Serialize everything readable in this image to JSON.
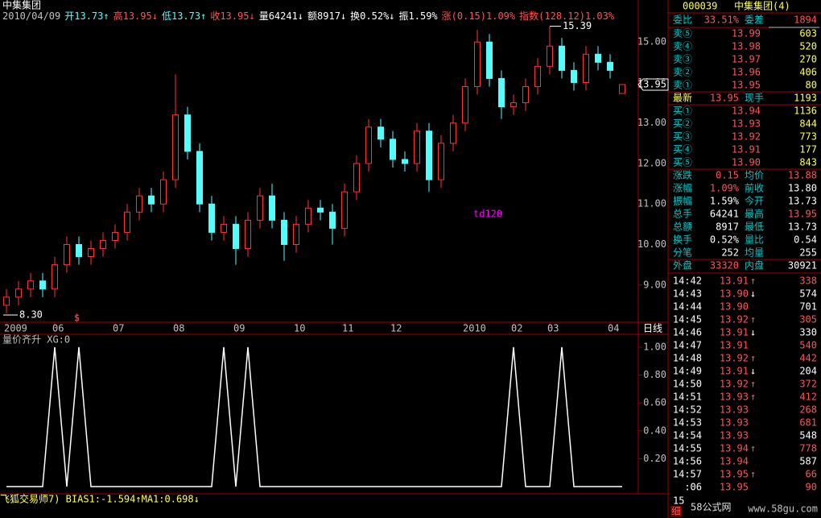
{
  "header": {
    "title": "中集集团",
    "info": [
      {
        "text": "2010/04/09",
        "color": "#c0c0c0"
      },
      {
        "text": "开13.73↑",
        "color": "#54fcfc"
      },
      {
        "text": "高13.95↓",
        "color": "#ff5454"
      },
      {
        "text": "低13.73↑",
        "color": "#54fcfc"
      },
      {
        "text": "收13.95↓",
        "color": "#ff5454"
      },
      {
        "text": "量64241↓",
        "color": "#ffffff"
      },
      {
        "text": "额8917↓",
        "color": "#ffffff"
      },
      {
        "text": "换0.52%↓",
        "color": "#ffffff"
      },
      {
        "text": "振1.59%",
        "color": "#ffffff"
      },
      {
        "text": "涨(0.15)1.09%",
        "color": "#ff5454"
      },
      {
        "text": "指数(128.12)1.03%",
        "color": "#ff5454"
      }
    ]
  },
  "chart_data": [
    {
      "type": "candlestick",
      "period": "日线",
      "categories": [
        "2009",
        null,
        null,
        null,
        "06",
        null,
        null,
        null,
        null,
        "07",
        null,
        null,
        null,
        null,
        "08",
        null,
        null,
        null,
        null,
        "09",
        null,
        null,
        null,
        null,
        "10",
        null,
        null,
        null,
        "11",
        null,
        null,
        null,
        "12",
        null,
        null,
        null,
        null,
        null,
        "2010",
        null,
        null,
        null,
        "02",
        null,
        null,
        "03",
        null,
        null,
        null,
        null,
        "04",
        null
      ],
      "open": [
        8.5,
        8.7,
        8.9,
        9.1,
        8.9,
        9.5,
        10.0,
        9.7,
        9.9,
        10.1,
        10.3,
        10.8,
        11.2,
        11.0,
        11.6,
        13.2,
        12.3,
        11.0,
        10.3,
        10.5,
        9.9,
        10.6,
        11.2,
        10.6,
        10.0,
        10.5,
        10.9,
        10.8,
        10.4,
        11.3,
        12.0,
        12.9,
        12.6,
        12.1,
        12.0,
        12.8,
        11.6,
        12.5,
        13.0,
        13.9,
        15.0,
        14.1,
        13.4,
        13.5,
        13.9,
        14.4,
        14.9,
        14.3,
        14.0,
        14.7,
        14.5,
        13.73
      ],
      "high": [
        8.9,
        9.1,
        9.3,
        9.3,
        9.7,
        10.2,
        10.2,
        10.1,
        10.3,
        10.5,
        11.0,
        11.4,
        11.4,
        11.8,
        14.2,
        13.4,
        12.5,
        11.2,
        10.7,
        10.7,
        10.8,
        11.4,
        11.5,
        10.8,
        10.7,
        11.1,
        11.1,
        11.0,
        11.5,
        12.2,
        13.1,
        13.1,
        12.8,
        12.3,
        13.0,
        13.0,
        12.7,
        13.2,
        14.1,
        15.3,
        15.2,
        14.3,
        13.7,
        14.1,
        14.6,
        15.39,
        15.1,
        14.5,
        14.9,
        14.9,
        14.7,
        13.95
      ],
      "low": [
        8.3,
        8.5,
        8.7,
        8.7,
        8.7,
        9.3,
        9.5,
        9.5,
        9.7,
        9.9,
        10.1,
        10.6,
        10.8,
        10.8,
        11.4,
        12.1,
        10.8,
        10.1,
        10.1,
        9.5,
        9.7,
        10.4,
        10.4,
        9.6,
        9.8,
        10.3,
        10.6,
        10.0,
        10.2,
        11.1,
        11.8,
        12.4,
        11.9,
        11.8,
        11.8,
        11.3,
        11.4,
        12.3,
        12.8,
        13.7,
        13.9,
        13.1,
        13.2,
        13.3,
        13.7,
        14.2,
        14.1,
        13.8,
        13.8,
        14.3,
        14.1,
        13.73
      ],
      "close": [
        8.7,
        8.9,
        9.1,
        8.9,
        9.5,
        10.0,
        9.7,
        9.9,
        10.1,
        10.3,
        10.8,
        11.2,
        11.0,
        11.6,
        13.2,
        12.3,
        11.0,
        10.3,
        10.5,
        9.9,
        10.6,
        11.2,
        10.6,
        10.0,
        10.5,
        10.9,
        10.8,
        10.4,
        11.3,
        12.0,
        12.9,
        12.6,
        12.1,
        12.0,
        12.8,
        11.6,
        12.5,
        13.0,
        13.9,
        15.0,
        14.1,
        13.4,
        13.5,
        13.9,
        14.4,
        14.9,
        14.3,
        14.0,
        14.7,
        14.5,
        14.3,
        13.95
      ],
      "colors": {
        "up": "#ff3232",
        "down": "#54fcfc"
      },
      "ylim": [
        8.08,
        15.68
      ],
      "yticks": [
        {
          "value": 9,
          "label": "9.00"
        },
        {
          "value": 10,
          "label": "10.00"
        },
        {
          "value": 11,
          "label": "11.00"
        },
        {
          "value": 12,
          "label": "12.00"
        },
        {
          "value": 13,
          "label": "13.00"
        },
        {
          "value": 14,
          "label": "14.00"
        },
        {
          "value": 15,
          "label": "15.00"
        }
      ],
      "annotations": {
        "high_label": "15.39",
        "low_label": "8.30",
        "study": "td120",
        "signal": "$",
        "last_price": "13.95"
      }
    },
    {
      "type": "line",
      "title": "量价齐升 XG:0",
      "color": "#ffffff",
      "values": [
        0,
        0,
        0,
        0,
        1,
        0,
        1,
        0,
        0,
        0,
        0,
        0,
        0,
        0,
        0,
        0,
        0,
        0,
        1,
        0,
        1,
        0,
        0,
        0,
        0,
        0,
        0,
        0,
        0,
        0,
        0,
        0,
        0,
        0,
        0,
        0,
        0,
        0,
        0,
        0,
        0,
        0,
        1,
        0,
        0,
        0,
        1,
        0,
        0,
        0,
        0,
        0
      ],
      "ylim": [
        0,
        1
      ],
      "yticks": [
        {
          "value": 0.2,
          "label": "0.20"
        },
        {
          "value": 0.4,
          "label": "0.40"
        },
        {
          "value": 0.6,
          "label": "0.60"
        },
        {
          "value": 0.8,
          "label": "0.80"
        },
        {
          "value": 1,
          "label": "1.00"
        }
      ],
      "footer": "飞狐交易师7) BIAS1:-1.594↑MA1:0.698↓"
    }
  ],
  "quote": {
    "code": "000039",
    "name": "中集集团(4)",
    "ratio": {
      "label": "委比",
      "value": "33.51%",
      "label2": "委差",
      "value2": "1894"
    },
    "sells": [
      [
        "卖⑤",
        "13.99",
        "603"
      ],
      [
        "卖④",
        "13.98",
        "520"
      ],
      [
        "卖③",
        "13.97",
        "270"
      ],
      [
        "卖②",
        "13.96",
        "406"
      ],
      [
        "卖①",
        "13.95",
        "80"
      ]
    ],
    "last": [
      "最新",
      "13.95",
      "现手",
      "1193"
    ],
    "buys": [
      [
        "买①",
        "13.94",
        "1136"
      ],
      [
        "买②",
        "13.93",
        "844"
      ],
      [
        "买③",
        "13.92",
        "773"
      ],
      [
        "买④",
        "13.91",
        "177"
      ],
      [
        "买⑤",
        "13.90",
        "843"
      ]
    ],
    "stats": [
      [
        {
          "label": "涨跌",
          "value": "0.15",
          "color": "#ff5454"
        },
        {
          "label": "均价",
          "value": "13.88",
          "color": "#ff5454"
        }
      ],
      [
        {
          "label": "涨幅",
          "value": "1.09%",
          "color": "#ff5454"
        },
        {
          "label": "前收",
          "value": "13.80",
          "color": "#ffffff"
        }
      ],
      [
        {
          "label": "振幅",
          "value": "1.59%",
          "color": "#ffffff"
        },
        {
          "label": "今开",
          "value": "13.73",
          "color": "#ffffff"
        }
      ],
      [
        {
          "label": "总手",
          "value": "64241",
          "color": "#ffffff"
        },
        {
          "label": "最高",
          "value": "13.95",
          "color": "#ff5454"
        }
      ],
      [
        {
          "label": "总额",
          "value": "8917",
          "color": "#ffffff"
        },
        {
          "label": "最低",
          "value": "13.73",
          "color": "#ffffff"
        }
      ],
      [
        {
          "label": "换手",
          "value": "0.52%",
          "color": "#ffffff"
        },
        {
          "label": "量比",
          "value": "0.54",
          "color": "#ffffff"
        }
      ],
      [
        {
          "label": "分笔",
          "value": "252",
          "color": "#ffffff"
        },
        {
          "label": "均量",
          "value": "255",
          "color": "#ffffff"
        }
      ]
    ],
    "outer": [
      {
        "label": "外盘",
        "value": "33320",
        "color": "#ff5454"
      },
      {
        "label": "内盘",
        "value": "30921",
        "color": "#ffffff"
      }
    ],
    "ticks": [
      {
        "time": "14:42",
        "price": "13.91",
        "arrow": "↑",
        "volume": "338",
        "volume_color": "#ff5454"
      },
      {
        "time": "14:43",
        "price": "13.90",
        "arrow": "↓",
        "volume": "574",
        "volume_color": "#ffffff"
      },
      {
        "time": "14:44",
        "price": "13.90",
        "volume": "701",
        "volume_color": "#ffffff"
      },
      {
        "time": "14:45",
        "price": "13.92",
        "arrow": "↑",
        "volume": "305",
        "volume_color": "#ff5454"
      },
      {
        "time": "14:46",
        "price": "13.91",
        "arrow": "↓",
        "volume": "330",
        "volume_color": "#ffffff"
      },
      {
        "time": "14:47",
        "price": "13.91",
        "volume": "540",
        "volume_color": "#ff5454"
      },
      {
        "time": "14:48",
        "price": "13.92",
        "arrow": "↑",
        "volume": "442",
        "volume_color": "#ff5454"
      },
      {
        "time": "14:49",
        "price": "13.91",
        "arrow": "↓",
        "volume": "204",
        "volume_color": "#ffffff"
      },
      {
        "time": "14:50",
        "price": "13.92",
        "arrow": "↑",
        "volume": "372",
        "volume_color": "#ff5454"
      },
      {
        "time": "14:51",
        "price": "13.93",
        "arrow": "↑",
        "volume": "412",
        "volume_color": "#ff5454"
      },
      {
        "time": "14:52",
        "price": "13.93",
        "volume": "268",
        "volume_color": "#ff5454"
      },
      {
        "time": "14:53",
        "price": "13.93",
        "volume": "681",
        "volume_color": "#ff5454"
      },
      {
        "time": "14:54",
        "price": "13.93",
        "volume": "548",
        "volume_color": "#ffffff"
      },
      {
        "time": "14:55",
        "price": "13.94",
        "arrow": "↑",
        "volume": "778",
        "volume_color": "#ff5454"
      },
      {
        "time": "14:56",
        "price": "13.94",
        "volume": "587",
        "volume_color": "#ffffff"
      },
      {
        "time": "14:57",
        "price": "13.95",
        "arrow": "↑",
        "volume": "66",
        "volume_color": "#ff5454"
      },
      {
        "time": ":06",
        "price": "13.95",
        "volume": "90",
        "volume_color": "#ff5454"
      }
    ],
    "footer": {
      "time": "15",
      "tab": "细",
      "watermark": "58公式网",
      "url": "www.58gu.com"
    }
  }
}
